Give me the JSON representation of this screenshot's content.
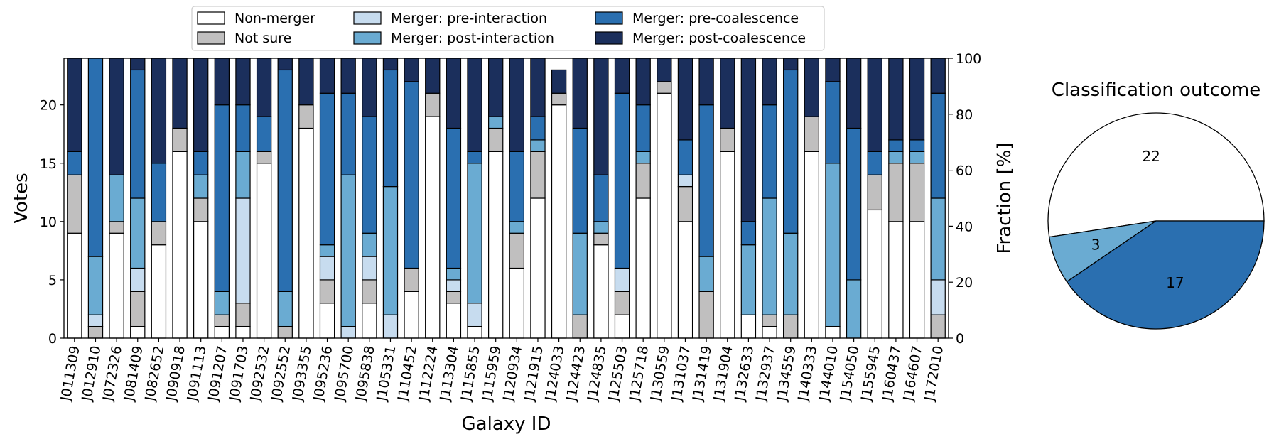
{
  "chart_data": [
    {
      "type": "bar",
      "stacked": true,
      "xlabel": "Galaxy ID",
      "ylabel": "Votes",
      "ylabel_right": "Fraction [%]",
      "ylim": [
        0,
        24
      ],
      "yticks": [
        0,
        5,
        10,
        15,
        20
      ],
      "ylim_right": [
        0,
        100
      ],
      "yticks_right": [
        0,
        20,
        40,
        60,
        80,
        100
      ],
      "legend_position": "top-center",
      "categories": [
        "J011309",
        "J012910",
        "J072326",
        "J081409",
        "J082652",
        "J090918",
        "J091113",
        "J091207",
        "J091703",
        "J092532",
        "J092552",
        "J093355",
        "J095236",
        "J095700",
        "J095838",
        "J105331",
        "J110452",
        "J112224",
        "J113304",
        "J115855",
        "J115959",
        "J120934",
        "J121915",
        "J124033",
        "J124423",
        "J124835",
        "J125503",
        "J125718",
        "J130559",
        "J131037",
        "J131419",
        "J131904",
        "J132633",
        "J132937",
        "J134559",
        "J140333",
        "J144010",
        "J154050",
        "J155945",
        "J160437",
        "J164607",
        "J172010"
      ],
      "series": [
        {
          "name": "Non-merger",
          "color": "#ffffff",
          "values": [
            9,
            0,
            9,
            1,
            8,
            16,
            10,
            1,
            1,
            15,
            0,
            18,
            3,
            0,
            3,
            0,
            4,
            19,
            3,
            1,
            16,
            6,
            12,
            20,
            0,
            8,
            2,
            12,
            21,
            10,
            0,
            16,
            2,
            1,
            0,
            16,
            1,
            0,
            11,
            10,
            10,
            0
          ]
        },
        {
          "name": "Not sure",
          "color": "#c0bfbf",
          "values": [
            5,
            1,
            1,
            3,
            2,
            2,
            2,
            1,
            2,
            1,
            1,
            2,
            2,
            0,
            2,
            0,
            2,
            2,
            1,
            0,
            2,
            3,
            4,
            1,
            2,
            1,
            2,
            3,
            1,
            3,
            4,
            2,
            0,
            1,
            2,
            3,
            0,
            0,
            3,
            5,
            5,
            2
          ]
        },
        {
          "name": "Merger: pre-interaction",
          "color": "#c7dcef",
          "values": [
            0,
            1,
            0,
            2,
            0,
            0,
            0,
            0,
            9,
            0,
            0,
            0,
            2,
            1,
            2,
            2,
            0,
            0,
            1,
            2,
            0,
            0,
            0,
            0,
            0,
            0,
            2,
            0,
            0,
            1,
            0,
            0,
            0,
            0,
            0,
            0,
            0,
            0,
            0,
            0,
            0,
            3
          ]
        },
        {
          "name": "Merger: post-interaction",
          "color": "#6aabd2",
          "values": [
            0,
            5,
            4,
            6,
            0,
            0,
            2,
            2,
            4,
            0,
            3,
            0,
            1,
            13,
            2,
            11,
            0,
            0,
            1,
            12,
            1,
            1,
            1,
            0,
            7,
            1,
            0,
            1,
            0,
            0,
            3,
            0,
            6,
            10,
            7,
            0,
            14,
            5,
            0,
            1,
            1,
            7
          ]
        },
        {
          "name": "Merger: pre-coalescence",
          "color": "#2a6fb0",
          "values": [
            2,
            17,
            0,
            11,
            5,
            0,
            2,
            16,
            4,
            3,
            19,
            0,
            13,
            7,
            10,
            10,
            16,
            0,
            12,
            1,
            0,
            6,
            2,
            0,
            9,
            4,
            15,
            4,
            0,
            3,
            13,
            0,
            2,
            8,
            14,
            0,
            7,
            13,
            2,
            1,
            1,
            9
          ]
        },
        {
          "name": "Merger: post-coalescence",
          "color": "#1b2f5c",
          "values": [
            8,
            0,
            10,
            1,
            9,
            6,
            8,
            4,
            4,
            5,
            1,
            4,
            3,
            3,
            5,
            1,
            2,
            3,
            6,
            8,
            5,
            8,
            5,
            2,
            6,
            10,
            3,
            4,
            2,
            7,
            4,
            6,
            14,
            4,
            1,
            5,
            2,
            6,
            8,
            7,
            7,
            3
          ]
        }
      ]
    },
    {
      "type": "pie",
      "title": "Classification outcome",
      "slices": [
        {
          "label": "22",
          "value": 22,
          "color": "#ffffff"
        },
        {
          "label": "3",
          "value": 3,
          "color": "#6aabd2"
        },
        {
          "label": "17",
          "value": 17,
          "color": "#2a6fb0"
        }
      ]
    }
  ]
}
